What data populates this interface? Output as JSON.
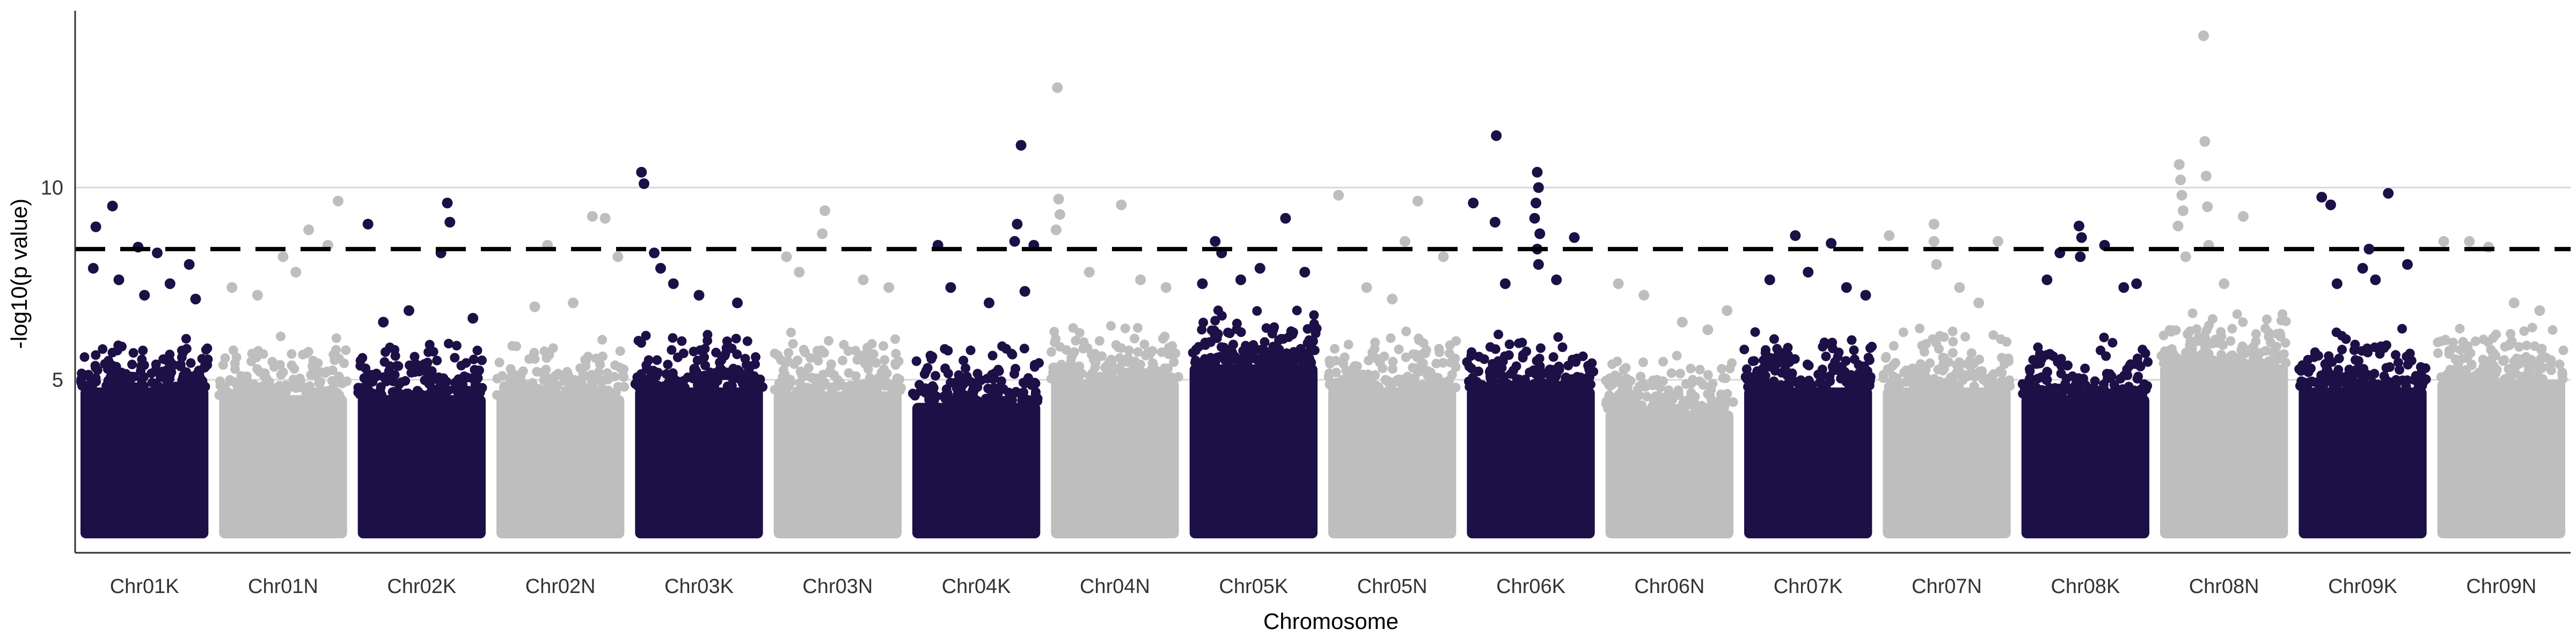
{
  "chart_data": {
    "type": "scatter",
    "subtype": "manhattan",
    "title": "",
    "xlabel": "Chromosome",
    "ylabel": "-log10(p value)",
    "ylim": [
      0.5,
      14.6
    ],
    "yticks": [
      5,
      10
    ],
    "ytick_labels": [
      "5",
      "10"
    ],
    "significance_threshold": 8.4,
    "grid": "horizontal major lines",
    "colors": {
      "dark": "#1c1046",
      "light": "#bebebe",
      "threshold": "#000000",
      "grid": "#d9d9d9",
      "axis": "#333333"
    },
    "chromosomes": [
      {
        "name": "Chr01K",
        "color": "dark",
        "body_top": 4.8,
        "outliers": [
          [
            0.12,
            8.98
          ],
          [
            0.25,
            9.52
          ],
          [
            0.45,
            8.45
          ],
          [
            0.6,
            8.3
          ],
          [
            0.1,
            7.9
          ],
          [
            0.3,
            7.6
          ],
          [
            0.7,
            7.5
          ],
          [
            0.85,
            8.0
          ],
          [
            0.5,
            7.2
          ],
          [
            0.9,
            7.1
          ]
        ]
      },
      {
        "name": "Chr01N",
        "color": "light",
        "body_top": 4.6,
        "outliers": [
          [
            0.5,
            8.2
          ],
          [
            0.7,
            8.9
          ],
          [
            0.85,
            8.5
          ],
          [
            0.93,
            9.65
          ],
          [
            0.3,
            7.2
          ],
          [
            0.6,
            7.8
          ],
          [
            0.1,
            7.4
          ]
        ]
      },
      {
        "name": "Chr02K",
        "color": "dark",
        "body_top": 4.6,
        "outliers": [
          [
            0.08,
            9.05
          ],
          [
            0.7,
            9.6
          ],
          [
            0.72,
            9.1
          ],
          [
            0.65,
            8.3
          ],
          [
            0.4,
            6.8
          ],
          [
            0.2,
            6.5
          ],
          [
            0.9,
            6.6
          ]
        ]
      },
      {
        "name": "Chr02N",
        "color": "light",
        "body_top": 4.6,
        "outliers": [
          [
            0.4,
            8.5
          ],
          [
            0.75,
            9.25
          ],
          [
            0.85,
            9.2
          ],
          [
            0.3,
            6.9
          ],
          [
            0.6,
            7.0
          ],
          [
            0.95,
            8.2
          ]
        ]
      },
      {
        "name": "Chr03K",
        "color": "dark",
        "body_top": 4.8,
        "outliers": [
          [
            0.05,
            10.4
          ],
          [
            0.07,
            10.1
          ],
          [
            0.15,
            8.3
          ],
          [
            0.2,
            7.9
          ],
          [
            0.5,
            7.2
          ],
          [
            0.8,
            7.0
          ],
          [
            0.3,
            7.5
          ]
        ]
      },
      {
        "name": "Chr03N",
        "color": "light",
        "body_top": 4.7,
        "outliers": [
          [
            0.4,
            9.4
          ],
          [
            0.38,
            8.8
          ],
          [
            0.1,
            8.2
          ],
          [
            0.2,
            7.8
          ],
          [
            0.7,
            7.6
          ],
          [
            0.9,
            7.4
          ]
        ]
      },
      {
        "name": "Chr04K",
        "color": "dark",
        "body_top": 4.4,
        "outliers": [
          [
            0.85,
            11.1
          ],
          [
            0.82,
            9.05
          ],
          [
            0.8,
            8.6
          ],
          [
            0.95,
            8.5
          ],
          [
            0.2,
            8.5
          ],
          [
            0.3,
            7.4
          ],
          [
            0.6,
            7.0
          ],
          [
            0.88,
            7.3
          ]
        ]
      },
      {
        "name": "Chr04N",
        "color": "light",
        "body_top": 5.0,
        "outliers": [
          [
            0.05,
            12.6
          ],
          [
            0.06,
            9.7
          ],
          [
            0.07,
            9.3
          ],
          [
            0.04,
            8.9
          ],
          [
            0.55,
            9.55
          ],
          [
            0.3,
            7.8
          ],
          [
            0.7,
            7.6
          ],
          [
            0.9,
            7.4
          ]
        ]
      },
      {
        "name": "Chr05K",
        "color": "dark",
        "body_top": 5.4,
        "outliers": [
          [
            0.2,
            8.6
          ],
          [
            0.25,
            8.3
          ],
          [
            0.75,
            9.2
          ],
          [
            0.55,
            7.9
          ],
          [
            0.4,
            7.6
          ],
          [
            0.9,
            7.8
          ],
          [
            0.1,
            7.5
          ]
        ]
      },
      {
        "name": "Chr05N",
        "color": "light",
        "body_top": 4.8,
        "outliers": [
          [
            0.08,
            9.8
          ],
          [
            0.7,
            9.65
          ],
          [
            0.6,
            8.6
          ],
          [
            0.9,
            8.2
          ],
          [
            0.3,
            7.4
          ],
          [
            0.5,
            7.1
          ]
        ]
      },
      {
        "name": "Chr06K",
        "color": "dark",
        "body_top": 4.8,
        "outliers": [
          [
            0.23,
            11.35
          ],
          [
            0.05,
            9.6
          ],
          [
            0.22,
            9.1
          ],
          [
            0.55,
            10.4
          ],
          [
            0.56,
            10.0
          ],
          [
            0.54,
            9.6
          ],
          [
            0.53,
            9.2
          ],
          [
            0.57,
            8.8
          ],
          [
            0.55,
            8.4
          ],
          [
            0.56,
            8.0
          ],
          [
            0.84,
            8.7
          ],
          [
            0.3,
            7.5
          ],
          [
            0.7,
            7.6
          ]
        ]
      },
      {
        "name": "Chr06N",
        "color": "light",
        "body_top": 4.2,
        "outliers": [
          [
            0.1,
            7.5
          ],
          [
            0.3,
            7.2
          ],
          [
            0.6,
            6.5
          ],
          [
            0.8,
            6.3
          ],
          [
            0.95,
            6.8
          ]
        ]
      },
      {
        "name": "Chr07K",
        "color": "dark",
        "body_top": 4.8,
        "outliers": [
          [
            0.4,
            8.75
          ],
          [
            0.68,
            8.55
          ],
          [
            0.2,
            7.6
          ],
          [
            0.5,
            7.8
          ],
          [
            0.8,
            7.4
          ],
          [
            0.95,
            7.2
          ]
        ]
      },
      {
        "name": "Chr07N",
        "color": "light",
        "body_top": 4.8,
        "outliers": [
          [
            0.4,
            9.05
          ],
          [
            0.4,
            8.6
          ],
          [
            0.42,
            8.0
          ],
          [
            0.05,
            8.75
          ],
          [
            0.9,
            8.6
          ],
          [
            0.6,
            7.4
          ],
          [
            0.75,
            7.0
          ]
        ]
      },
      {
        "name": "Chr08K",
        "color": "dark",
        "body_top": 4.6,
        "outliers": [
          [
            0.45,
            9.0
          ],
          [
            0.47,
            8.7
          ],
          [
            0.3,
            8.3
          ],
          [
            0.65,
            8.5
          ],
          [
            0.46,
            8.2
          ],
          [
            0.2,
            7.6
          ],
          [
            0.8,
            7.4
          ],
          [
            0.9,
            7.5
          ]
        ]
      },
      {
        "name": "Chr08N",
        "color": "light",
        "body_top": 5.4,
        "outliers": [
          [
            0.34,
            13.95
          ],
          [
            0.35,
            11.2
          ],
          [
            0.15,
            10.6
          ],
          [
            0.16,
            10.2
          ],
          [
            0.17,
            9.8
          ],
          [
            0.18,
            9.4
          ],
          [
            0.36,
            10.3
          ],
          [
            0.37,
            9.5
          ],
          [
            0.14,
            9.0
          ],
          [
            0.65,
            9.25
          ],
          [
            0.38,
            8.5
          ],
          [
            0.2,
            8.2
          ],
          [
            0.5,
            7.5
          ]
        ]
      },
      {
        "name": "Chr09K",
        "color": "dark",
        "body_top": 4.8,
        "outliers": [
          [
            0.18,
            9.75
          ],
          [
            0.25,
            9.55
          ],
          [
            0.7,
            9.85
          ],
          [
            0.55,
            8.4
          ],
          [
            0.5,
            7.9
          ],
          [
            0.6,
            7.6
          ],
          [
            0.85,
            8.0
          ],
          [
            0.3,
            7.5
          ]
        ]
      },
      {
        "name": "Chr09N",
        "color": "light",
        "body_top": 5.0,
        "outliers": [
          [
            0.05,
            8.6
          ],
          [
            0.25,
            8.6
          ],
          [
            0.4,
            8.45
          ],
          [
            0.6,
            7.0
          ],
          [
            0.8,
            6.8
          ]
        ]
      }
    ]
  }
}
